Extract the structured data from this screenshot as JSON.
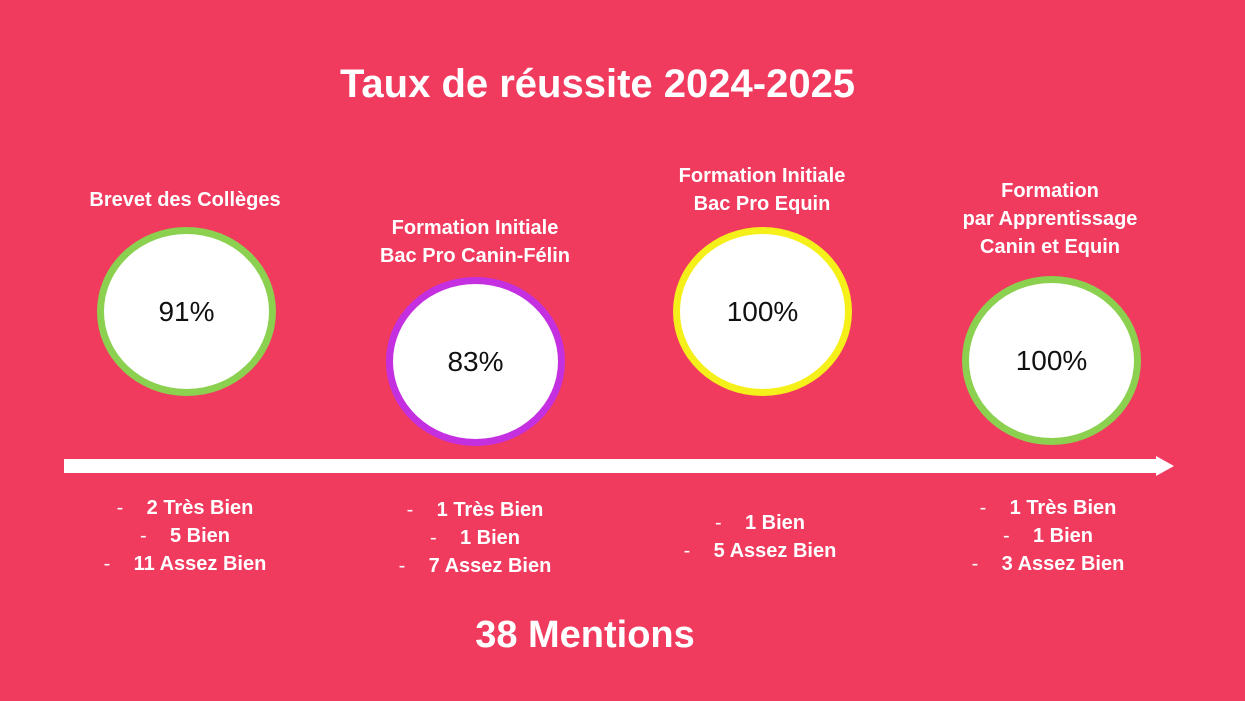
{
  "title": "Taux de réussite 2024-2025",
  "accent_color": "#f03b5f",
  "arrow_color": "#ffffff",
  "sections": [
    {
      "heading": [
        "Brevet des Collèges"
      ],
      "rate": "91%",
      "ring_color": "#8bd04f",
      "mentions": [
        "2 Très Bien",
        "5 Bien",
        "11 Assez Bien"
      ]
    },
    {
      "heading": [
        "Formation Initiale",
        "Bac Pro Canin-Félin"
      ],
      "rate": "83%",
      "ring_color": "#c42fe0",
      "mentions": [
        "1 Très Bien",
        "1 Bien",
        "7 Assez Bien"
      ]
    },
    {
      "heading": [
        "Formation Initiale",
        "Bac Pro Equin"
      ],
      "rate": "100%",
      "ring_color": "#f5ef1a",
      "mentions": [
        "1 Bien",
        "5 Assez Bien"
      ]
    },
    {
      "heading": [
        "Formation",
        "par Apprentissage",
        "Canin et Equin"
      ],
      "rate": "100%",
      "ring_color": "#8bd04f",
      "mentions": [
        "1 Très Bien",
        "1 Bien",
        "3 Assez Bien"
      ]
    }
  ],
  "total": "38 Mentions"
}
